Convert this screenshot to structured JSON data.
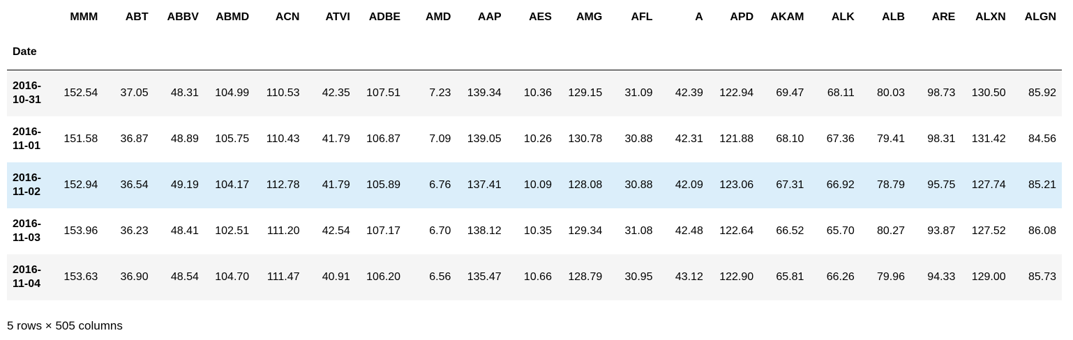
{
  "dataframe": {
    "index_name": "Date",
    "columns": [
      "MMM",
      "ABT",
      "ABBV",
      "ABMD",
      "ACN",
      "ATVI",
      "ADBE",
      "AMD",
      "AAP",
      "AES",
      "AMG",
      "AFL",
      "A",
      "APD",
      "AKAM",
      "ALK",
      "ALB",
      "ARE",
      "ALXN",
      "ALGN"
    ],
    "rows": [
      {
        "index_lines": [
          "2016-",
          "10-31"
        ],
        "values": [
          "152.54",
          "37.05",
          "48.31",
          "104.99",
          "110.53",
          "42.35",
          "107.51",
          "7.23",
          "139.34",
          "10.36",
          "129.15",
          "31.09",
          "42.39",
          "122.94",
          "69.47",
          "68.11",
          "80.03",
          "98.73",
          "130.50",
          "85.92"
        ]
      },
      {
        "index_lines": [
          "2016-",
          "11-01"
        ],
        "values": [
          "151.58",
          "36.87",
          "48.89",
          "105.75",
          "110.43",
          "41.79",
          "106.87",
          "7.09",
          "139.05",
          "10.26",
          "130.78",
          "30.88",
          "42.31",
          "121.88",
          "68.10",
          "67.36",
          "79.41",
          "98.31",
          "131.42",
          "84.56"
        ]
      },
      {
        "index_lines": [
          "2016-",
          "11-02"
        ],
        "values": [
          "152.94",
          "36.54",
          "49.19",
          "104.17",
          "112.78",
          "41.79",
          "105.89",
          "6.76",
          "137.41",
          "10.09",
          "128.08",
          "30.88",
          "42.09",
          "123.06",
          "67.31",
          "66.92",
          "78.79",
          "95.75",
          "127.74",
          "85.21"
        ]
      },
      {
        "index_lines": [
          "2016-",
          "11-03"
        ],
        "values": [
          "153.96",
          "36.23",
          "48.41",
          "102.51",
          "111.20",
          "42.54",
          "107.17",
          "6.70",
          "138.12",
          "10.35",
          "129.34",
          "31.08",
          "42.48",
          "122.64",
          "66.52",
          "65.70",
          "80.27",
          "93.87",
          "127.52",
          "86.08"
        ]
      },
      {
        "index_lines": [
          "2016-",
          "11-04"
        ],
        "values": [
          "153.63",
          "36.90",
          "48.54",
          "104.70",
          "111.47",
          "40.91",
          "106.20",
          "6.56",
          "135.47",
          "10.66",
          "128.79",
          "30.95",
          "43.12",
          "122.90",
          "65.81",
          "66.26",
          "79.96",
          "94.33",
          "129.00",
          "85.73"
        ]
      }
    ],
    "hover_row": 2,
    "shape_text": "5 rows × 505 columns"
  },
  "colors": {
    "row_odd": "#f5f5f5",
    "row_even": "#ffffff",
    "row_hover": "#dbeefa",
    "header_rule": "#000000"
  }
}
